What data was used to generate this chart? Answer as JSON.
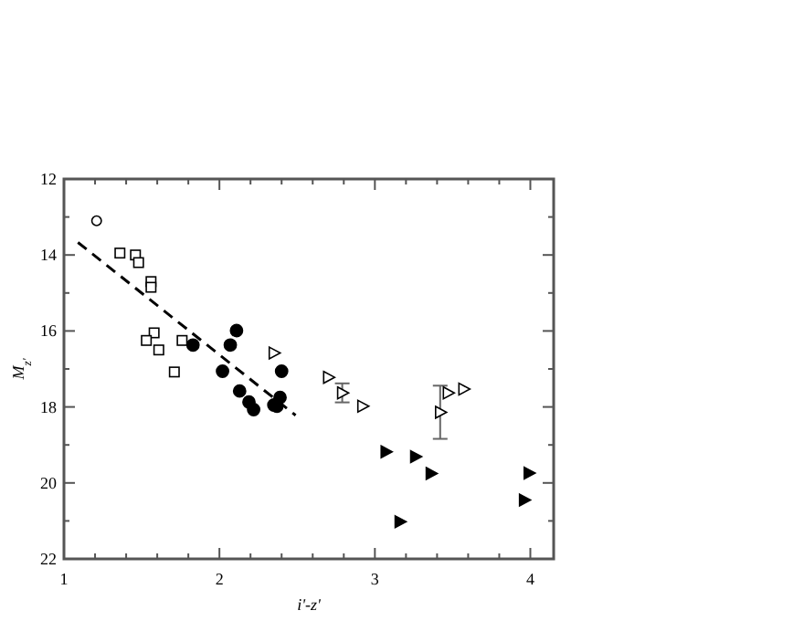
{
  "chart_data": {
    "type": "scatter",
    "xlabel": "i'-z'",
    "ylabel": "M$_{z'}$",
    "xlim": [
      1,
      4.15
    ],
    "ylim": [
      22,
      12
    ],
    "xticks": [
      1,
      {
        "value": 1.2,
        "label": null
      },
      {
        "value": 1.4,
        "label": null
      },
      {
        "value": 1.6,
        "label": null
      },
      {
        "value": 1.8,
        "label": null
      },
      2,
      {
        "value": 2.2,
        "label": null
      },
      {
        "value": 2.4,
        "label": null
      },
      {
        "value": 2.6,
        "label": null
      },
      {
        "value": 2.8,
        "label": null
      },
      3,
      {
        "value": 3.2,
        "label": null
      },
      {
        "value": 3.4,
        "label": null
      },
      {
        "value": 3.6,
        "label": null
      },
      {
        "value": 3.8,
        "label": null
      },
      4
    ],
    "yticks": [
      12,
      {
        "value": 13,
        "label": null
      },
      14,
      {
        "value": 15,
        "label": null
      },
      16,
      {
        "value": 17,
        "label": null
      },
      18,
      {
        "value": 19,
        "label": null
      },
      20,
      {
        "value": 21,
        "label": null
      },
      22
    ],
    "grid": false,
    "series": [
      {
        "marker": "circle-open",
        "color": "#000000",
        "x": [
          1.21
        ],
        "values": [
          13.1
        ]
      },
      {
        "marker": "square-open",
        "color": "#000000",
        "x": [
          1.36,
          1.46,
          1.48,
          1.56,
          1.56,
          1.58,
          1.53,
          1.61,
          1.76,
          1.71
        ],
        "values": [
          13.95,
          14.0,
          14.2,
          14.7,
          14.85,
          16.05,
          16.25,
          16.5,
          16.25,
          17.08
        ]
      },
      {
        "marker": "circle",
        "color": "#000000",
        "x": [
          1.83,
          2.07,
          2.11,
          2.02,
          2.4,
          2.13,
          2.19,
          2.22,
          2.35,
          2.37,
          2.39
        ],
        "values": [
          16.37,
          16.37,
          15.99,
          17.06,
          17.06,
          17.58,
          17.87,
          18.07,
          17.95,
          17.98,
          17.75
        ]
      },
      {
        "marker": "triangle-open",
        "color": "#000000",
        "x": [
          2.35,
          2.7,
          2.79,
          2.92,
          3.42,
          3.47,
          3.57
        ],
        "values": [
          16.58,
          17.22,
          17.63,
          17.98,
          18.14,
          17.63,
          17.53
        ],
        "errors": [
          null,
          null,
          0.25,
          null,
          0.7,
          null,
          null
        ]
      },
      {
        "marker": "triangle",
        "color": "#000000",
        "x": [
          3.07,
          3.26,
          3.36,
          3.16,
          3.99,
          3.96
        ],
        "values": [
          19.18,
          19.31,
          19.75,
          21.02,
          19.74,
          20.45
        ]
      },
      {
        "type": "line",
        "marker": "none",
        "line_style": "dashed",
        "color": "#000000",
        "x": [
          1.09,
          2.49
        ],
        "values": [
          13.67,
          18.22
        ]
      }
    ]
  }
}
